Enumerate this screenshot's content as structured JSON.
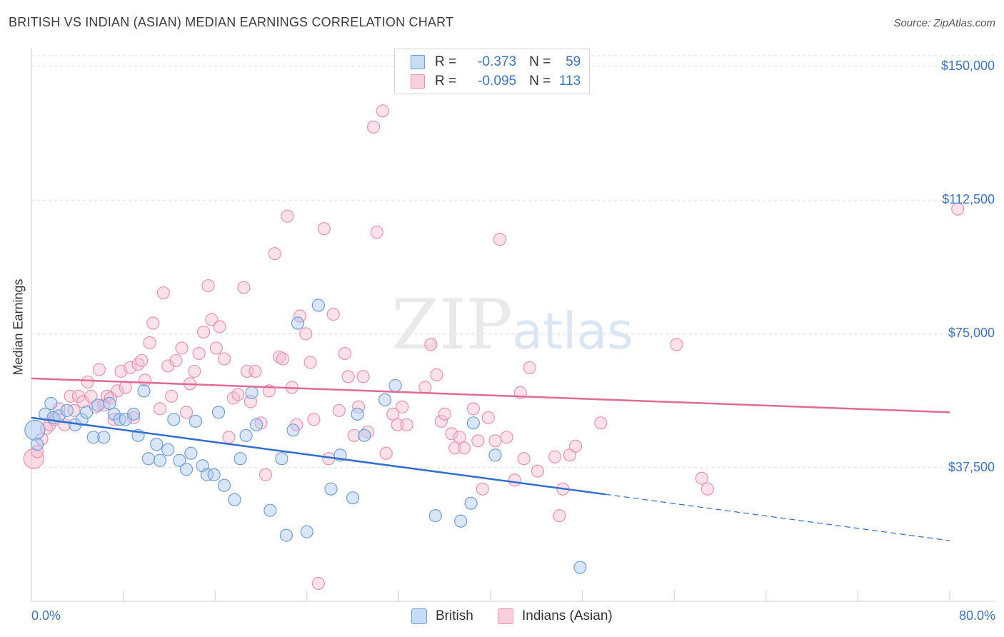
{
  "title": "BRITISH VS INDIAN (ASIAN) MEDIAN EARNINGS CORRELATION CHART",
  "source": "Source: ZipAtlas.com",
  "watermark": {
    "zip": "ZIP",
    "atlas": "atlas"
  },
  "legend": {
    "r_label": "R =",
    "n_label": "N =",
    "british": {
      "r": "-0.373",
      "n": "59"
    },
    "indians": {
      "r": "-0.095",
      "n": "113"
    }
  },
  "bottom_legend": {
    "british": "British",
    "indians": "Indians (Asian)"
  },
  "colors": {
    "british_fill": "#aac8f0",
    "british_stroke": "#6e9fdd",
    "british_line": "#2f6fd0",
    "indian_fill": "#f7bcd0",
    "indian_stroke": "#ec92b2",
    "indian_line": "#e26a95",
    "axis_label": "#3a75c4"
  },
  "chart_data": {
    "type": "scatter",
    "title": "BRITISH VS INDIAN (ASIAN) MEDIAN EARNINGS CORRELATION CHART",
    "xlabel": "",
    "ylabel": "Median Earnings",
    "xlim": [
      0,
      80
    ],
    "ylim": [
      0,
      155000
    ],
    "x_tick_labels": [
      "0.0%",
      "80.0%"
    ],
    "y_ticks": [
      37500,
      75000,
      112500,
      150000
    ],
    "y_tick_labels": [
      "$37,500",
      "$75,000",
      "$112,500",
      "$150,000"
    ],
    "grid": true,
    "legend_position": "top-center",
    "series": [
      {
        "name": "British",
        "r": -0.373,
        "n": 59,
        "trend": {
          "x0": 0,
          "y0": 51500,
          "x1": 50,
          "y1": 30000,
          "dashed_to_x": 80,
          "dashed_to_y": 17000
        },
        "points": [
          [
            0.3,
            48000
          ],
          [
            0.5,
            44000
          ],
          [
            1.2,
            52500
          ],
          [
            1.7,
            55500
          ],
          [
            1.9,
            51500
          ],
          [
            2.4,
            52000
          ],
          [
            3.1,
            53500
          ],
          [
            3.8,
            49500
          ],
          [
            4.4,
            51000
          ],
          [
            4.8,
            53000
          ],
          [
            5.4,
            46000
          ],
          [
            5.8,
            55000
          ],
          [
            6.3,
            46000
          ],
          [
            6.8,
            55500
          ],
          [
            7.2,
            52500
          ],
          [
            7.7,
            51000
          ],
          [
            8.2,
            51000
          ],
          [
            8.9,
            52500
          ],
          [
            9.3,
            46500
          ],
          [
            9.8,
            59000
          ],
          [
            10.2,
            40000
          ],
          [
            10.9,
            44000
          ],
          [
            11.2,
            39500
          ],
          [
            11.9,
            42500
          ],
          [
            12.4,
            51000
          ],
          [
            12.9,
            39500
          ],
          [
            13.5,
            37000
          ],
          [
            13.9,
            41500
          ],
          [
            14.3,
            50500
          ],
          [
            14.9,
            38000
          ],
          [
            15.3,
            35500
          ],
          [
            15.9,
            35500
          ],
          [
            16.3,
            53000
          ],
          [
            16.8,
            32500
          ],
          [
            17.7,
            28500
          ],
          [
            18.2,
            40000
          ],
          [
            18.7,
            46500
          ],
          [
            19.2,
            58500
          ],
          [
            19.6,
            49500
          ],
          [
            20.8,
            25500
          ],
          [
            21.8,
            40000
          ],
          [
            22.2,
            18500
          ],
          [
            22.8,
            48000
          ],
          [
            23.2,
            78000
          ],
          [
            24.0,
            19500
          ],
          [
            25.0,
            83000
          ],
          [
            26.1,
            31500
          ],
          [
            26.9,
            41000
          ],
          [
            28.0,
            29000
          ],
          [
            28.4,
            52500
          ],
          [
            29.0,
            46500
          ],
          [
            30.8,
            56500
          ],
          [
            31.7,
            60500
          ],
          [
            35.2,
            24000
          ],
          [
            37.4,
            22500
          ],
          [
            38.3,
            27500
          ],
          [
            38.5,
            50000
          ],
          [
            40.4,
            41000
          ],
          [
            47.8,
            9500
          ]
        ]
      },
      {
        "name": "Indians (Asian)",
        "r": -0.095,
        "n": 113,
        "trend": {
          "x0": 0,
          "y0": 62500,
          "x1": 80,
          "y1": 53000
        },
        "points": [
          [
            0.2,
            40000
          ],
          [
            0.5,
            42000
          ],
          [
            0.9,
            45500
          ],
          [
            1.3,
            48500
          ],
          [
            1.6,
            49500
          ],
          [
            2.0,
            51000
          ],
          [
            2.4,
            54000
          ],
          [
            2.9,
            49500
          ],
          [
            3.4,
            57500
          ],
          [
            3.7,
            53500
          ],
          [
            4.1,
            57500
          ],
          [
            4.5,
            56000
          ],
          [
            4.9,
            61500
          ],
          [
            5.2,
            57500
          ],
          [
            5.6,
            54500
          ],
          [
            5.9,
            65000
          ],
          [
            6.3,
            55000
          ],
          [
            6.6,
            57500
          ],
          [
            6.9,
            57000
          ],
          [
            7.2,
            51000
          ],
          [
            7.5,
            59000
          ],
          [
            7.8,
            64500
          ],
          [
            8.2,
            60000
          ],
          [
            8.6,
            65500
          ],
          [
            8.9,
            51500
          ],
          [
            9.3,
            66500
          ],
          [
            9.6,
            67500
          ],
          [
            9.9,
            62000
          ],
          [
            10.3,
            72500
          ],
          [
            10.6,
            78000
          ],
          [
            11.2,
            54000
          ],
          [
            11.5,
            86500
          ],
          [
            11.9,
            66000
          ],
          [
            12.2,
            57500
          ],
          [
            12.6,
            67500
          ],
          [
            13.1,
            71000
          ],
          [
            13.5,
            53000
          ],
          [
            13.8,
            61000
          ],
          [
            14.2,
            64500
          ],
          [
            14.6,
            69500
          ],
          [
            15.0,
            75500
          ],
          [
            15.4,
            88500
          ],
          [
            15.7,
            79000
          ],
          [
            16.1,
            71000
          ],
          [
            16.4,
            77000
          ],
          [
            16.8,
            68000
          ],
          [
            17.2,
            46000
          ],
          [
            17.6,
            57000
          ],
          [
            18.0,
            58000
          ],
          [
            18.5,
            88000
          ],
          [
            18.8,
            64500
          ],
          [
            19.1,
            56000
          ],
          [
            19.5,
            64500
          ],
          [
            20.0,
            50000
          ],
          [
            20.4,
            35500
          ],
          [
            20.7,
            59000
          ],
          [
            21.2,
            97500
          ],
          [
            21.6,
            68500
          ],
          [
            21.9,
            68000
          ],
          [
            22.3,
            108000
          ],
          [
            22.7,
            60000
          ],
          [
            23.1,
            49500
          ],
          [
            23.4,
            80000
          ],
          [
            23.9,
            75000
          ],
          [
            24.3,
            67000
          ],
          [
            24.6,
            51000
          ],
          [
            25.0,
            5000
          ],
          [
            25.5,
            104500
          ],
          [
            25.9,
            40000
          ],
          [
            26.3,
            80500
          ],
          [
            26.8,
            53500
          ],
          [
            27.3,
            69500
          ],
          [
            27.6,
            63000
          ],
          [
            28.1,
            46500
          ],
          [
            28.5,
            54500
          ],
          [
            28.9,
            63000
          ],
          [
            29.3,
            47500
          ],
          [
            29.8,
            133000
          ],
          [
            30.1,
            103500
          ],
          [
            30.6,
            137500
          ],
          [
            30.9,
            41500
          ],
          [
            31.5,
            52500
          ],
          [
            31.9,
            49500
          ],
          [
            32.3,
            54500
          ],
          [
            32.7,
            49500
          ],
          [
            34.3,
            60000
          ],
          [
            34.8,
            72000
          ],
          [
            35.3,
            63500
          ],
          [
            35.7,
            50500
          ],
          [
            36.0,
            52500
          ],
          [
            36.6,
            47000
          ],
          [
            36.9,
            43000
          ],
          [
            37.3,
            46000
          ],
          [
            37.7,
            43000
          ],
          [
            38.5,
            54000
          ],
          [
            38.9,
            45000
          ],
          [
            39.3,
            31500
          ],
          [
            39.8,
            51500
          ],
          [
            40.4,
            45000
          ],
          [
            40.8,
            101500
          ],
          [
            41.4,
            46000
          ],
          [
            42.1,
            34000
          ],
          [
            42.6,
            58500
          ],
          [
            42.9,
            40000
          ],
          [
            43.4,
            65500
          ],
          [
            44.1,
            36500
          ],
          [
            45.6,
            40500
          ],
          [
            46.0,
            24000
          ],
          [
            46.3,
            31500
          ],
          [
            46.9,
            41000
          ],
          [
            47.4,
            43500
          ],
          [
            49.6,
            50000
          ],
          [
            56.2,
            72000
          ],
          [
            58.4,
            34500
          ],
          [
            58.9,
            31500
          ],
          [
            80.7,
            110000
          ]
        ]
      }
    ]
  }
}
